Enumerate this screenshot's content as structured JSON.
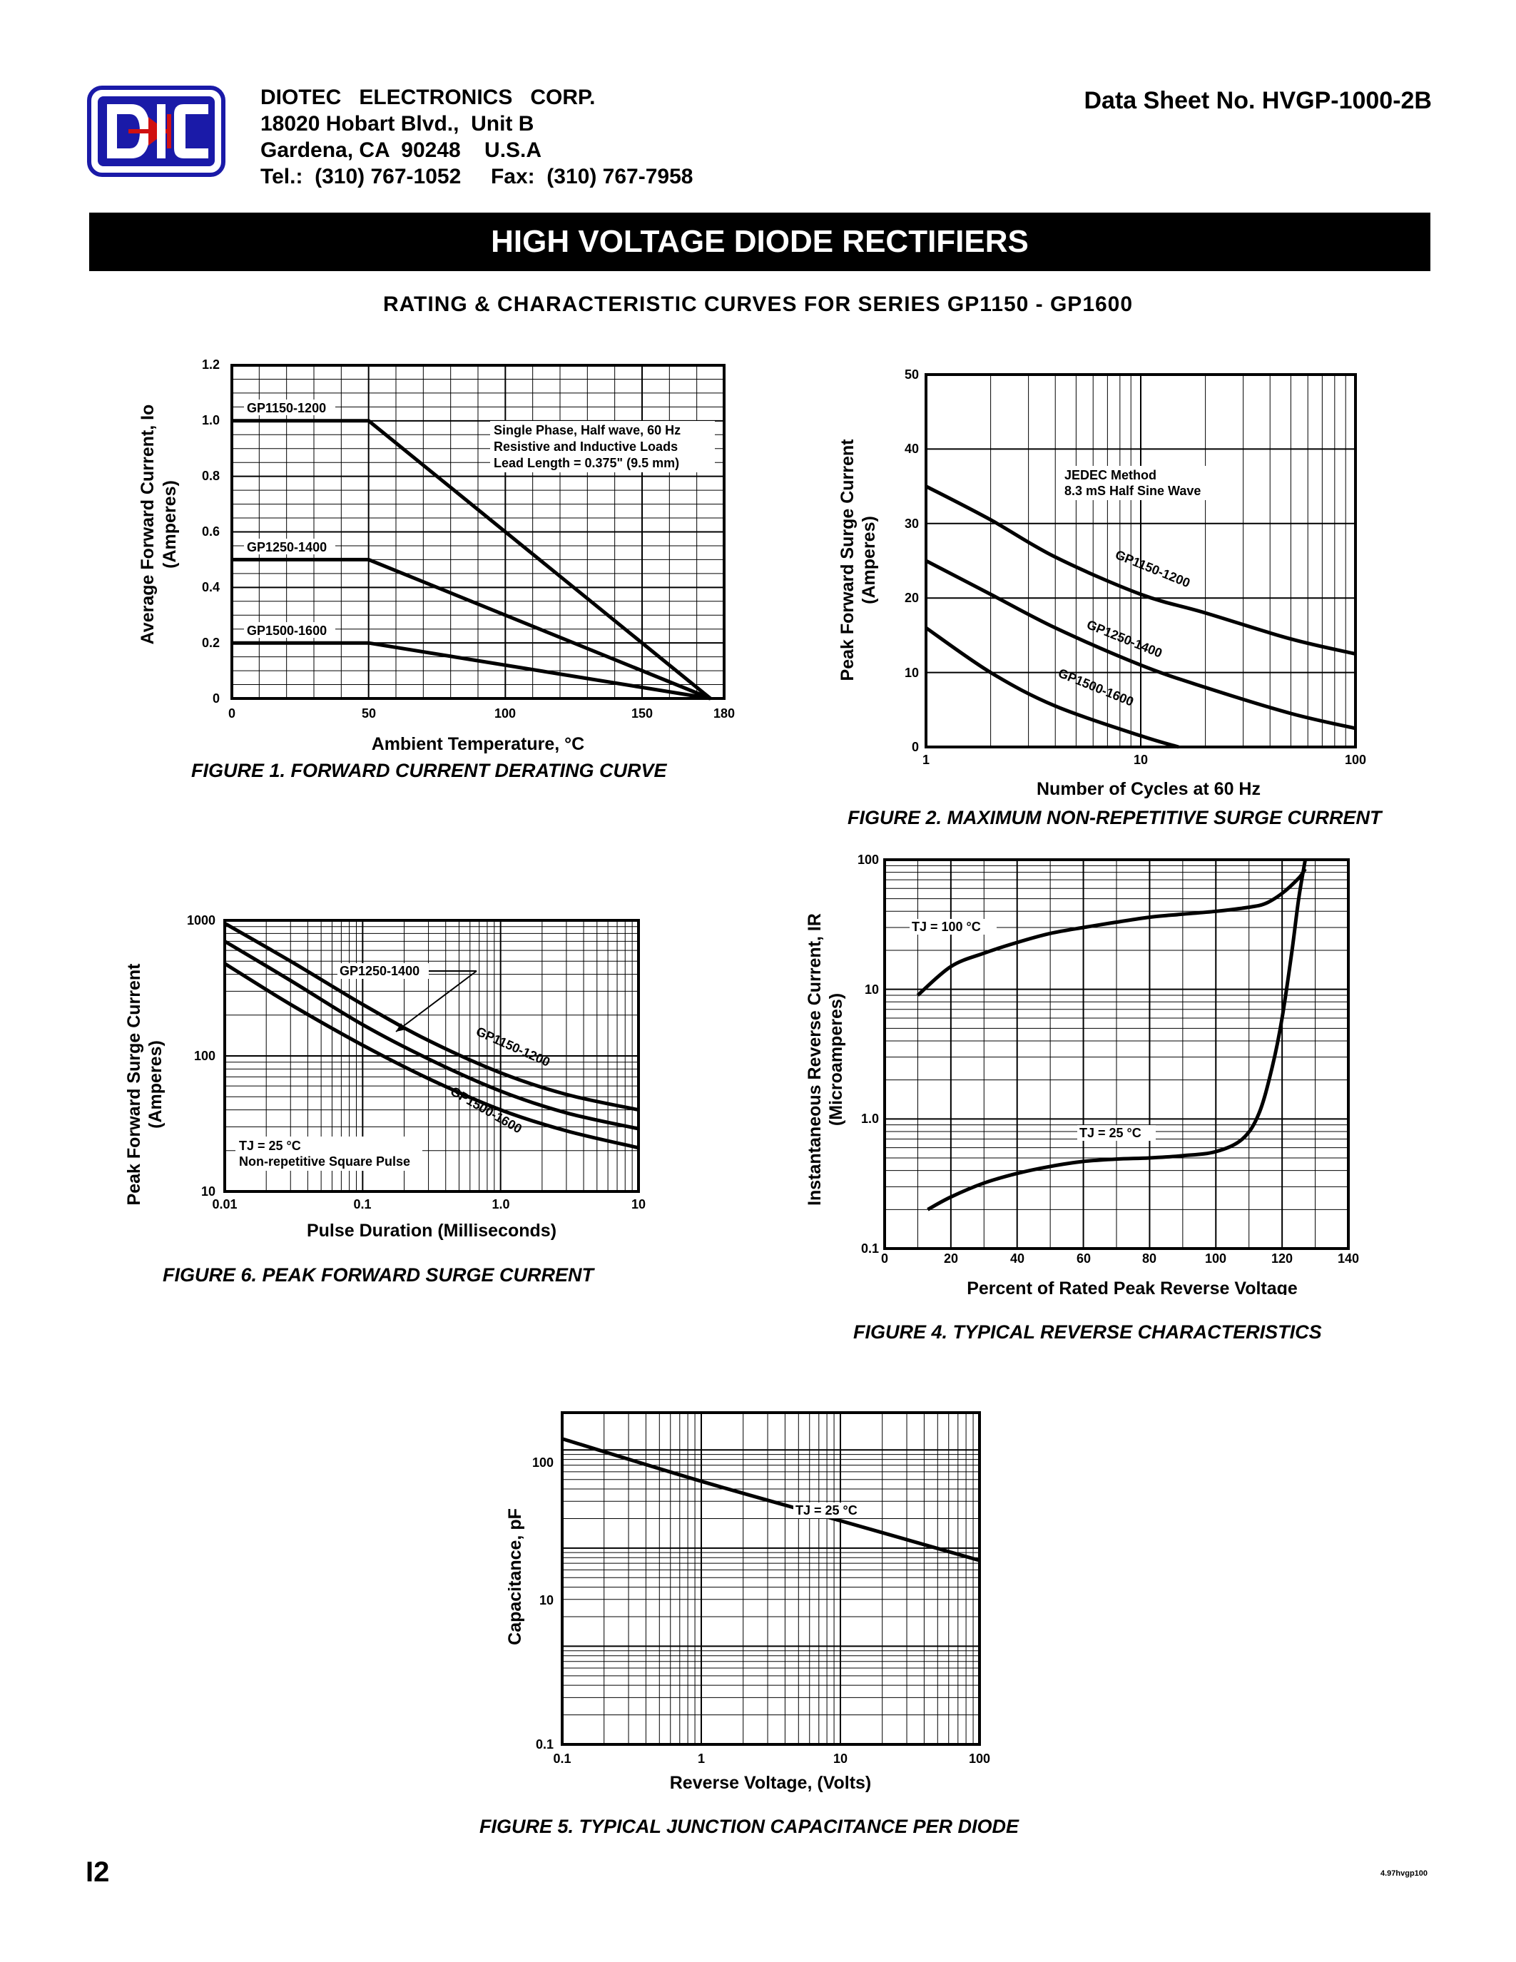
{
  "header": {
    "company_name": "DIOTEC   ELECTRONICS   CORP.",
    "address1": "18020 Hobart Blvd.,  Unit B",
    "address2": "Gardena, CA  90248    U.S.A",
    "phone_fax": "Tel.:  (310) 767-1052     Fax:  (310) 767-7958",
    "datasheet_no": "Data Sheet No.  HVGP-1000-2B",
    "title": "HIGH VOLTAGE DIODE RECTIFIERS",
    "subtitle": "RATING & CHARACTERISTIC CURVES FOR SERIES GP1150 - GP1600",
    "logo_text": "DIC",
    "colors": {
      "logo_blue": "#1a1aa8",
      "logo_red": "#d01010"
    }
  },
  "footer": {
    "page": "I2",
    "code": "4.97hvgp100"
  },
  "figures": {
    "fig1": {
      "caption": "FIGURE 1.  FORWARD CURRENT DERATING CURVE",
      "xlabel": "Ambient  Temperature, °C",
      "ylabel1": "Average Forward Current, Io",
      "ylabel2": "(Amperes)",
      "note1": "Single Phase, Half wave, 60 Hz",
      "note2": "Resistive and Inductive Loads",
      "note3": "Lead Length = 0.375\" (9.5 mm)",
      "series_labels": [
        "GP1150-1200",
        "GP1250-1400",
        "GP1500-1600"
      ],
      "xticks": [
        "0",
        "50",
        "100",
        "150",
        "180"
      ],
      "yticks": [
        "0",
        "0.2",
        "0.4",
        "0.6",
        "0.8",
        "1.0",
        "1.2"
      ]
    },
    "fig2": {
      "caption": "FIGURE 2.  MAXIMUM NON-REPETITIVE SURGE CURRENT",
      "xlabel": "Number of Cycles at 60 Hz",
      "ylabel1": "Peak Forward Surge Current",
      "ylabel2": "(Amperes)",
      "note1": "JEDEC Method",
      "note2": "8.3 mS Half Sine Wave",
      "series_labels": [
        "GP1150-1200",
        "GP1250-1400",
        "GP1500-1600"
      ],
      "xticks": [
        "1",
        "10",
        "100"
      ],
      "yticks": [
        "0",
        "10",
        "20",
        "30",
        "40",
        "50"
      ]
    },
    "fig6": {
      "caption": "FIGURE 6.  PEAK FORWARD SURGE CURRENT",
      "xlabel": "Pulse Duration (Milliseconds)",
      "ylabel1": "Peak Forward Surge Current",
      "ylabel2": "(Amperes)",
      "note1": "TJ = 25 °C",
      "note2": "Non-repetitive Square Pulse",
      "callout": "GP1250-1400",
      "series_labels": [
        "GP1150-1200",
        "GP1500-1600"
      ],
      "xticks": [
        "0.01",
        "0.1",
        "1.0",
        "10"
      ],
      "yticks": [
        "10",
        "100",
        "1000"
      ]
    },
    "fig4": {
      "caption": "FIGURE 4.  TYPICAL REVERSE CHARACTERISTICS",
      "xlabel": "Percent of Rated Peak Reverse Voltage",
      "ylabel1": "Instantaneous Reverse Current, IR",
      "ylabel2": "(Microamperes)",
      "note_hot": "TJ = 100 °C",
      "note_cold": "TJ = 25 °C",
      "xticks": [
        "0",
        "20",
        "40",
        "60",
        "80",
        "100",
        "120",
        "140"
      ],
      "yticks": [
        "0.1",
        "1.0",
        "10",
        "100"
      ]
    },
    "fig5": {
      "caption": "FIGURE 5.  TYPICAL JUNCTION CAPACITANCE PER DIODE",
      "xlabel": "Reverse Voltage, (Volts)",
      "ylabel1": "Capacitance, pF",
      "note1": "TJ = 25 °C",
      "xticks": [
        "0.1",
        "1",
        "10",
        "100"
      ],
      "yticks": [
        "0.1",
        "10",
        "100"
      ]
    }
  },
  "chart_data": [
    {
      "type": "line",
      "title": "FIGURE 1.  FORWARD CURRENT DERATING CURVE",
      "xlabel": "Ambient  Temperature, °C",
      "ylabel": "Average Forward Current, Io (Amperes)",
      "xlim": [
        0,
        180
      ],
      "ylim": [
        0,
        1.2
      ],
      "grid": true,
      "series": [
        {
          "name": "GP1150-1200",
          "x": [
            0,
            50,
            175
          ],
          "y": [
            1.0,
            1.0,
            0
          ]
        },
        {
          "name": "GP1250-1400",
          "x": [
            0,
            50,
            175
          ],
          "y": [
            0.5,
            0.5,
            0
          ]
        },
        {
          "name": "GP1500-1600",
          "x": [
            0,
            50,
            175
          ],
          "y": [
            0.2,
            0.2,
            0
          ]
        }
      ]
    },
    {
      "type": "line",
      "title": "FIGURE 2.  MAXIMUM NON-REPETITIVE SURGE CURRENT",
      "xlabel": "Number of Cycles at 60 Hz",
      "ylabel": "Peak Forward Surge Current (Amperes)",
      "xscale": "log",
      "xlim": [
        1,
        100
      ],
      "ylim": [
        0,
        50
      ],
      "grid": true,
      "series": [
        {
          "name": "GP1150-1200",
          "x": [
            1,
            2,
            4,
            10,
            20,
            50,
            100
          ],
          "y": [
            35,
            30.5,
            25.5,
            20.5,
            18,
            14.5,
            12.5
          ]
        },
        {
          "name": "GP1250-1400",
          "x": [
            1,
            2,
            4,
            10,
            20,
            50,
            100
          ],
          "y": [
            25,
            20.5,
            16,
            11,
            8,
            4.5,
            2.5
          ]
        },
        {
          "name": "GP1500-1600",
          "x": [
            1,
            2,
            4,
            10,
            15
          ],
          "y": [
            16,
            10,
            5.5,
            1.5,
            0
          ]
        }
      ]
    },
    {
      "type": "line",
      "title": "FIGURE 6.  PEAK FORWARD SURGE CURRENT",
      "xlabel": "Pulse Duration (Milliseconds)",
      "ylabel": "Peak Forward Surge Current (Amperes)",
      "xscale": "log",
      "yscale": "log",
      "xlim": [
        0.01,
        10
      ],
      "ylim": [
        10,
        1000
      ],
      "grid": true,
      "series": [
        {
          "name": "GP1150-1200",
          "x": [
            0.01,
            0.03,
            0.1,
            0.3,
            1,
            3,
            10
          ],
          "y": [
            950,
            500,
            240,
            130,
            75,
            52,
            40
          ]
        },
        {
          "name": "GP1250-1400",
          "x": [
            0.01,
            0.03,
            0.1,
            0.3,
            1,
            3,
            10
          ],
          "y": [
            700,
            360,
            170,
            95,
            55,
            38,
            29
          ]
        },
        {
          "name": "GP1500-1600",
          "x": [
            0.01,
            0.03,
            0.1,
            0.3,
            1,
            3,
            10
          ],
          "y": [
            480,
            240,
            120,
            68,
            40,
            28,
            21
          ]
        }
      ]
    },
    {
      "type": "line",
      "title": "FIGURE 4.  TYPICAL REVERSE CHARACTERISTICS",
      "xlabel": "Percent of Rated Peak Reverse Voltage",
      "ylabel": "Instantaneous Reverse Current, IR (Microamperes)",
      "yscale": "log",
      "xlim": [
        0,
        140
      ],
      "ylim": [
        0.1,
        100
      ],
      "grid": true,
      "series": [
        {
          "name": "TJ = 100 °C",
          "x": [
            10,
            20,
            30,
            40,
            50,
            60,
            70,
            80,
            90,
            100,
            110,
            115,
            120,
            125,
            127
          ],
          "y": [
            9,
            15,
            19,
            23,
            27,
            30,
            33,
            36,
            38,
            40,
            43,
            46,
            55,
            72,
            85
          ]
        },
        {
          "name": "TJ = 25 °C",
          "x": [
            13,
            20,
            30,
            40,
            50,
            60,
            70,
            80,
            90,
            100,
            108,
            113,
            117,
            120,
            123,
            125,
            127
          ],
          "y": [
            0.2,
            0.25,
            0.32,
            0.38,
            0.43,
            0.47,
            0.49,
            0.5,
            0.52,
            0.56,
            0.7,
            1.1,
            2.5,
            6,
            20,
            50,
            100
          ]
        }
      ]
    },
    {
      "type": "line",
      "title": "FIGURE 5.  TYPICAL JUNCTION CAPACITANCE PER DIODE",
      "xlabel": "Reverse Voltage, (Volts)",
      "ylabel": "Capacitance, pF",
      "xscale": "log",
      "yscale": "log",
      "xlim": [
        0.1,
        100
      ],
      "grid": true,
      "series": [
        {
          "name": "TJ = 25 °C",
          "x": [
            0.1,
            1,
            10,
            100
          ],
          "y": [
            130,
            48,
            19,
            7.5
          ]
        }
      ]
    }
  ]
}
